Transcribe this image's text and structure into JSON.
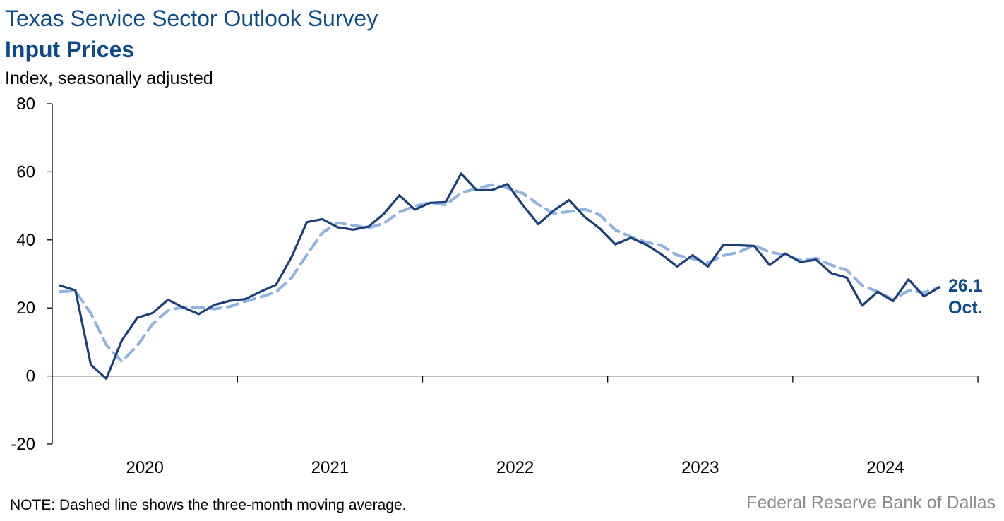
{
  "title": "Texas Service Sector Outlook Survey",
  "subtitle": "Input Prices",
  "unit_label": "Index, seasonally adjusted",
  "note": "NOTE: Dashed line shows the three-month moving average.",
  "source": "Federal Reserve Bank of Dallas",
  "end_label": {
    "value": "26.1",
    "month": "Oct."
  },
  "colors": {
    "actual": "#1b3f77",
    "moving_average": "#8fb2e3",
    "title": "#0d4a8a",
    "source": "#8c8c8c"
  },
  "chart_data": {
    "type": "line",
    "title": "Input Prices",
    "ylabel": "Index, seasonally adjusted",
    "ylim": [
      -20,
      80
    ],
    "yticks": [
      -20,
      0,
      20,
      40,
      60,
      80
    ],
    "year_labels": [
      "2020",
      "2021",
      "2022",
      "2023",
      "2024"
    ],
    "x_start": "2020-01",
    "series": [
      {
        "name": "Input Prices",
        "values": [
          26.6,
          25.2,
          3.3,
          -0.8,
          10.4,
          17.1,
          18.5,
          22.4,
          20.1,
          18.2,
          20.9,
          22.1,
          22.6,
          24.8,
          26.8,
          34.9,
          45.2,
          46.1,
          43.7,
          43.0,
          43.9,
          47.7,
          53.1,
          48.9,
          50.9,
          51.1,
          59.5,
          54.6,
          54.6,
          56.4,
          50.2,
          44.6,
          48.6,
          51.7,
          46.8,
          43.3,
          38.7,
          40.6,
          38.6,
          35.7,
          32.2,
          35.5,
          32.2,
          38.5,
          38.4,
          38.2,
          32.6,
          36.0,
          33.5,
          34.2,
          30.2,
          28.9,
          20.7,
          24.8,
          22.0,
          28.4,
          23.4,
          26.1
        ]
      },
      {
        "name": "Three-month moving average",
        "values": [
          24.8,
          25.0,
          18.4,
          9.2,
          4.3,
          8.9,
          15.3,
          19.3,
          20.3,
          20.2,
          19.7,
          20.4,
          21.9,
          23.2,
          24.7,
          28.8,
          35.6,
          42.1,
          45.0,
          44.3,
          43.5,
          44.9,
          48.2,
          49.9,
          51.0,
          50.3,
          53.8,
          55.1,
          56.2,
          55.2,
          53.7,
          50.4,
          47.8,
          48.3,
          49.0,
          47.3,
          42.9,
          40.9,
          39.3,
          38.3,
          35.5,
          34.5,
          33.3,
          35.4,
          36.4,
          38.4,
          36.4,
          35.6,
          34.0,
          34.6,
          32.6,
          31.1,
          26.6,
          24.8,
          22.5,
          25.1,
          24.6,
          26.0
        ]
      }
    ]
  }
}
